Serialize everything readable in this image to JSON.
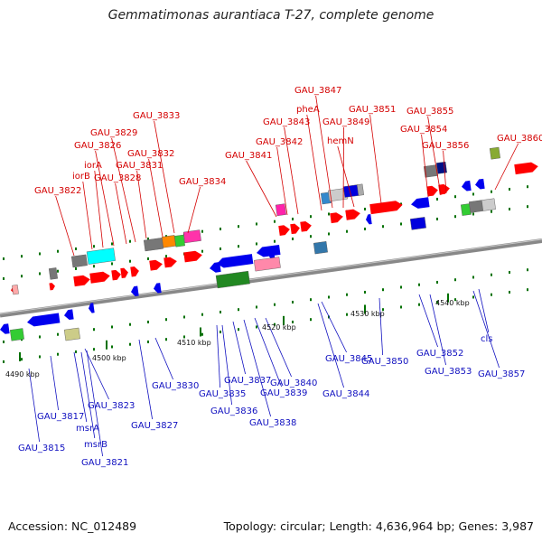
{
  "title": "Gemmatimonas aurantiaca T-27, complete genome",
  "footer": {
    "accession": "Accession: NC_012489",
    "summary": "Topology: circular; Length: 4,636,964 bp; Genes: 3,987"
  },
  "colors": {
    "top_strand": "#ff0000",
    "bottom_strand": "#0000ee",
    "top_label": "#d40000",
    "bottom_label": "#1010c0",
    "track": "#888888",
    "tick": "#007000"
  },
  "scale_labels": [
    "4490 kbp",
    "4500 kbp",
    "4510 kbp",
    "4520 kbp",
    "4530 kbp",
    "4540 kbp"
  ],
  "top_genes": [
    "GAU_3822",
    "iorB",
    "iorA",
    "GAU_3826",
    "GAU_3828",
    "GAU_3829",
    "GAU_3831",
    "GAU_3832",
    "GAU_3833",
    "GAU_3834",
    "GAU_3841",
    "GAU_3842",
    "GAU_3843",
    "pheA",
    "GAU_3847",
    "GAU_3849",
    "hemN",
    "GAU_3851",
    "GAU_3854",
    "GAU_3855",
    "GAU_3856",
    "GAU_3860"
  ],
  "bottom_genes": [
    "GAU_3815",
    "GAU_3817",
    "msrA",
    "msrB",
    "GAU_3821",
    "GAU_3823",
    "GAU_3827",
    "GAU_3830",
    "GAU_3835",
    "GAU_3836",
    "GAU_3837",
    "GAU_3838",
    "GAU_3839",
    "GAU_3840",
    "GAU_3844",
    "GAU_3845",
    "GAU_3850",
    "GAU_3852",
    "GAU_3853",
    "GAU_3857",
    "cls"
  ]
}
